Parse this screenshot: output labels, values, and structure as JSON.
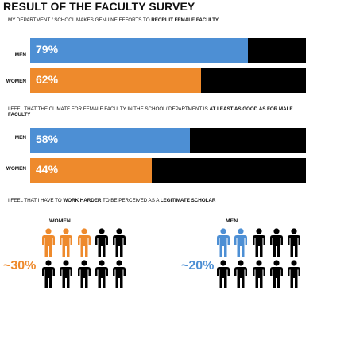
{
  "title": "RESULT OF THE FACULTY SURVEY",
  "colors": {
    "men": "#4d8fd4",
    "women": "#ee8a2c",
    "rest": "#000000"
  },
  "chart_data": [
    {
      "type": "bar",
      "question_pre": "MY DEPARTMENT / SCHOOL MAKES GENUINE EFFORTS TO ",
      "question_bold": "RECRUIT FEMALE FACULTY",
      "categories": [
        "MEN",
        "WOMEN"
      ],
      "values": [
        79,
        62
      ],
      "labels": [
        "79%",
        "62%"
      ],
      "ylim": [
        0,
        100
      ]
    },
    {
      "type": "bar",
      "question_pre": "I FEEL THAT THE CLIMATE FOR FEMALE FACULTY IN THE SCHOOL/ DEPARTMENT IS ",
      "question_bold": "AT LEAST AS GOOD AS FOR MALE FACULTY",
      "categories": [
        "MEN",
        "WOMEN"
      ],
      "values": [
        58,
        44
      ],
      "labels": [
        "58%",
        "44%"
      ],
      "ylim": [
        0,
        100
      ]
    },
    {
      "type": "pictogram",
      "question_pre": "I FEEL THAT I HAVE TO ",
      "question_bold": "WORK HARDER",
      "question_mid": " TO BE PERCEIVED AS A ",
      "question_bold2": "LEGITIMATE SCHOLAR",
      "groups": [
        {
          "name": "WOMEN",
          "label": "~30%",
          "value": 30,
          "highlighted": 3,
          "total": 10
        },
        {
          "name": "MEN",
          "label": "~20%",
          "value": 20,
          "highlighted": 2,
          "total": 10
        }
      ]
    }
  ]
}
